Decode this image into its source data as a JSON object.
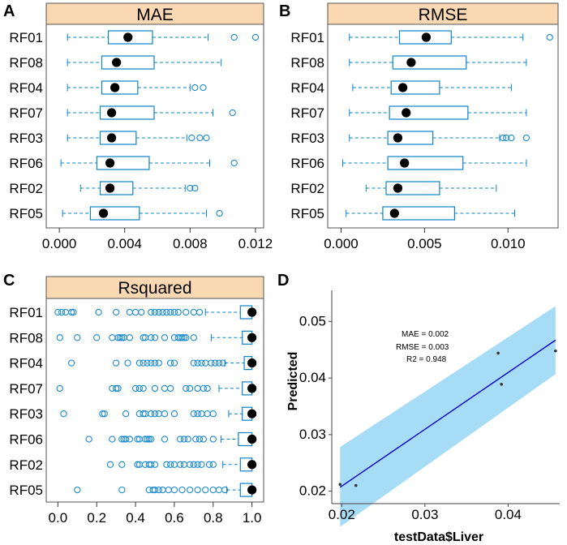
{
  "colors": {
    "strip_fill": "#fad8b2",
    "box_line": "#0d83c9",
    "outlier": "#1a8ad2",
    "median": "#000000",
    "fit_line": "#0000cc",
    "ribbon": "#a7dcf7",
    "point": "#333333",
    "panel_border": "#555555"
  },
  "chart_data": [
    {
      "panel": "A",
      "type": "boxplot",
      "title": "MAE",
      "orientation": "horizontal",
      "categories": [
        "RF01",
        "RF08",
        "RF04",
        "RF07",
        "RF03",
        "RF06",
        "RF02",
        "RF05"
      ],
      "xlim": [
        -0.0008,
        0.0125
      ],
      "xticks": [
        0.0,
        0.004,
        0.008,
        0.012
      ],
      "xtick_labels": [
        "0.000",
        "0.004",
        "0.008",
        "0.012"
      ],
      "boxes": [
        {
          "min": 0.0005,
          "q1": 0.003,
          "median": 0.0042,
          "q3": 0.0057,
          "max": 0.0091,
          "outliers": [
            0.0107,
            0.012
          ]
        },
        {
          "min": 0.0005,
          "q1": 0.0026,
          "median": 0.0035,
          "q3": 0.0058,
          "max": 0.0099,
          "outliers": []
        },
        {
          "min": 0.0005,
          "q1": 0.0026,
          "median": 0.0034,
          "q3": 0.0048,
          "max": 0.008,
          "outliers": [
            0.0083,
            0.0088
          ]
        },
        {
          "min": 0.0005,
          "q1": 0.0025,
          "median": 0.0032,
          "q3": 0.0058,
          "max": 0.0094,
          "outliers": [
            0.0106
          ]
        },
        {
          "min": 0.0005,
          "q1": 0.0025,
          "median": 0.0032,
          "q3": 0.0047,
          "max": 0.0078,
          "outliers": [
            0.0081,
            0.0086,
            0.009
          ]
        },
        {
          "min": 0.0001,
          "q1": 0.0023,
          "median": 0.0031,
          "q3": 0.0055,
          "max": 0.0092,
          "outliers": [
            0.0107
          ]
        },
        {
          "min": 0.0013,
          "q1": 0.0025,
          "median": 0.0031,
          "q3": 0.0045,
          "max": 0.0077,
          "outliers": [
            0.008,
            0.0083
          ]
        },
        {
          "min": 0.0002,
          "q1": 0.0019,
          "median": 0.0027,
          "q3": 0.0049,
          "max": 0.009,
          "outliers": [
            0.0098
          ]
        }
      ]
    },
    {
      "panel": "B",
      "type": "boxplot",
      "title": "RMSE",
      "orientation": "horizontal",
      "categories": [
        "RF01",
        "RF08",
        "RF04",
        "RF07",
        "RF03",
        "RF06",
        "RF02",
        "RF05"
      ],
      "xlim": [
        -0.0008,
        0.013
      ],
      "xticks": [
        0.0,
        0.005,
        0.01
      ],
      "xtick_labels": [
        "0.000",
        "0.005",
        "0.010"
      ],
      "boxes": [
        {
          "min": 0.0005,
          "q1": 0.0035,
          "median": 0.0051,
          "q3": 0.0066,
          "max": 0.0109,
          "outliers": [
            0.0125
          ]
        },
        {
          "min": 0.0005,
          "q1": 0.0031,
          "median": 0.0042,
          "q3": 0.0075,
          "max": 0.0111,
          "outliers": []
        },
        {
          "min": 0.0007,
          "q1": 0.003,
          "median": 0.0037,
          "q3": 0.0059,
          "max": 0.0102,
          "outliers": []
        },
        {
          "min": 0.0005,
          "q1": 0.0029,
          "median": 0.0039,
          "q3": 0.0076,
          "max": 0.0111,
          "outliers": []
        },
        {
          "min": 0.0005,
          "q1": 0.0028,
          "median": 0.0034,
          "q3": 0.0055,
          "max": 0.0095,
          "outliers": [
            0.0097,
            0.0099,
            0.0102,
            0.0111
          ]
        },
        {
          "min": 0.0001,
          "q1": 0.0028,
          "median": 0.0038,
          "q3": 0.0073,
          "max": 0.0111,
          "outliers": []
        },
        {
          "min": 0.0015,
          "q1": 0.0027,
          "median": 0.0034,
          "q3": 0.0059,
          "max": 0.0093,
          "outliers": []
        },
        {
          "min": 0.0003,
          "q1": 0.0025,
          "median": 0.0032,
          "q3": 0.0068,
          "max": 0.0104,
          "outliers": []
        }
      ]
    },
    {
      "panel": "C",
      "type": "boxplot",
      "title": "Rsquared",
      "orientation": "horizontal",
      "categories": [
        "RF01",
        "RF08",
        "RF04",
        "RF07",
        "RF03",
        "RF06",
        "RF02",
        "RF05"
      ],
      "xlim": [
        -0.06,
        1.06
      ],
      "xticks": [
        0.0,
        0.2,
        0.4,
        0.6,
        0.8,
        1.0
      ],
      "xtick_labels": [
        "0.0",
        "0.2",
        "0.4",
        "0.6",
        "0.8",
        "1.0"
      ],
      "boxes": [
        {
          "min": 0.76,
          "q1": 0.94,
          "median": 1.0,
          "q3": 1.0,
          "max": 1.0,
          "outliers": [
            0.0,
            0.02,
            0.04,
            0.07,
            0.08,
            0.21,
            0.3,
            0.37,
            0.4,
            0.43,
            0.48,
            0.5,
            0.52,
            0.54,
            0.56,
            0.58,
            0.6,
            0.62,
            0.66,
            0.7,
            0.73
          ]
        },
        {
          "min": 0.79,
          "q1": 0.95,
          "median": 1.0,
          "q3": 1.0,
          "max": 1.0,
          "outliers": [
            0.01,
            0.1,
            0.2,
            0.28,
            0.31,
            0.32,
            0.33,
            0.34,
            0.37,
            0.44,
            0.45,
            0.48,
            0.5,
            0.55,
            0.6,
            0.62,
            0.63,
            0.64,
            0.65,
            0.66,
            0.7
          ]
        },
        {
          "min": 0.86,
          "q1": 0.96,
          "median": 1.0,
          "q3": 1.0,
          "max": 1.0,
          "outliers": [
            0.07,
            0.3,
            0.36,
            0.42,
            0.44,
            0.46,
            0.48,
            0.5,
            0.52,
            0.58,
            0.6,
            0.7,
            0.72,
            0.74,
            0.76,
            0.79,
            0.81,
            0.83,
            0.85
          ]
        },
        {
          "min": 0.83,
          "q1": 0.95,
          "median": 1.0,
          "q3": 1.0,
          "max": 1.0,
          "outliers": [
            0.01,
            0.28,
            0.3,
            0.31,
            0.4,
            0.42,
            0.44,
            0.5,
            0.55,
            0.58,
            0.66,
            0.68,
            0.72,
            0.75,
            0.77
          ]
        },
        {
          "min": 0.88,
          "q1": 0.95,
          "median": 1.0,
          "q3": 1.0,
          "max": 1.0,
          "outliers": [
            0.03,
            0.23,
            0.24,
            0.35,
            0.42,
            0.44,
            0.45,
            0.48,
            0.5,
            0.52,
            0.55,
            0.6,
            0.7,
            0.72,
            0.74,
            0.77,
            0.8
          ]
        },
        {
          "min": 0.84,
          "q1": 0.93,
          "median": 1.0,
          "q3": 1.0,
          "max": 1.0,
          "outliers": [
            0.16,
            0.28,
            0.33,
            0.34,
            0.35,
            0.37,
            0.41,
            0.42,
            0.45,
            0.46,
            0.47,
            0.48,
            0.55,
            0.63,
            0.65,
            0.67,
            0.71,
            0.73,
            0.75,
            0.8
          ]
        },
        {
          "min": 0.85,
          "q1": 0.94,
          "median": 1.0,
          "q3": 1.0,
          "max": 1.0,
          "outliers": [
            0.27,
            0.33,
            0.41,
            0.42,
            0.45,
            0.47,
            0.48,
            0.5,
            0.56,
            0.58,
            0.6,
            0.63,
            0.65,
            0.68,
            0.7,
            0.72,
            0.74,
            0.78,
            0.8
          ]
        },
        {
          "min": 0.87,
          "q1": 0.94,
          "median": 1.0,
          "q3": 1.0,
          "max": 1.0,
          "outliers": [
            0.1,
            0.33,
            0.47,
            0.49,
            0.5,
            0.52,
            0.54,
            0.57,
            0.6,
            0.64,
            0.68,
            0.72,
            0.76,
            0.8,
            0.83,
            0.86
          ]
        }
      ]
    },
    {
      "panel": "D",
      "type": "scatter",
      "xlabel": "testData$Liver",
      "ylabel": "Predicted",
      "xlim": [
        0.0188,
        0.0462
      ],
      "ylim": [
        0.0178,
        0.0555
      ],
      "xticks": [
        0.02,
        0.03,
        0.04
      ],
      "xtick_labels": [
        "0.02",
        "0.03",
        "0.04"
      ],
      "yticks": [
        0.02,
        0.03,
        0.04,
        0.05
      ],
      "ytick_labels": [
        "0.02",
        "0.03",
        "0.04",
        "0.05"
      ],
      "points": [
        {
          "x": 0.0198,
          "y": 0.0212
        },
        {
          "x": 0.0217,
          "y": 0.021
        },
        {
          "x": 0.0388,
          "y": 0.0444
        },
        {
          "x": 0.0392,
          "y": 0.0389
        },
        {
          "x": 0.0457,
          "y": 0.0448
        }
      ],
      "fit": {
        "x": [
          0.0198,
          0.0457
        ],
        "y": [
          0.0207,
          0.0467
        ]
      },
      "ribbon": {
        "x": [
          0.0198,
          0.0457
        ],
        "upper": [
          0.0278,
          0.0527
        ],
        "lower": [
          0.0137,
          0.0407
        ]
      },
      "annotations": [
        "MAE  =  0.002",
        "RMSE  =  0.003",
        "R2  =  0.948"
      ]
    }
  ]
}
